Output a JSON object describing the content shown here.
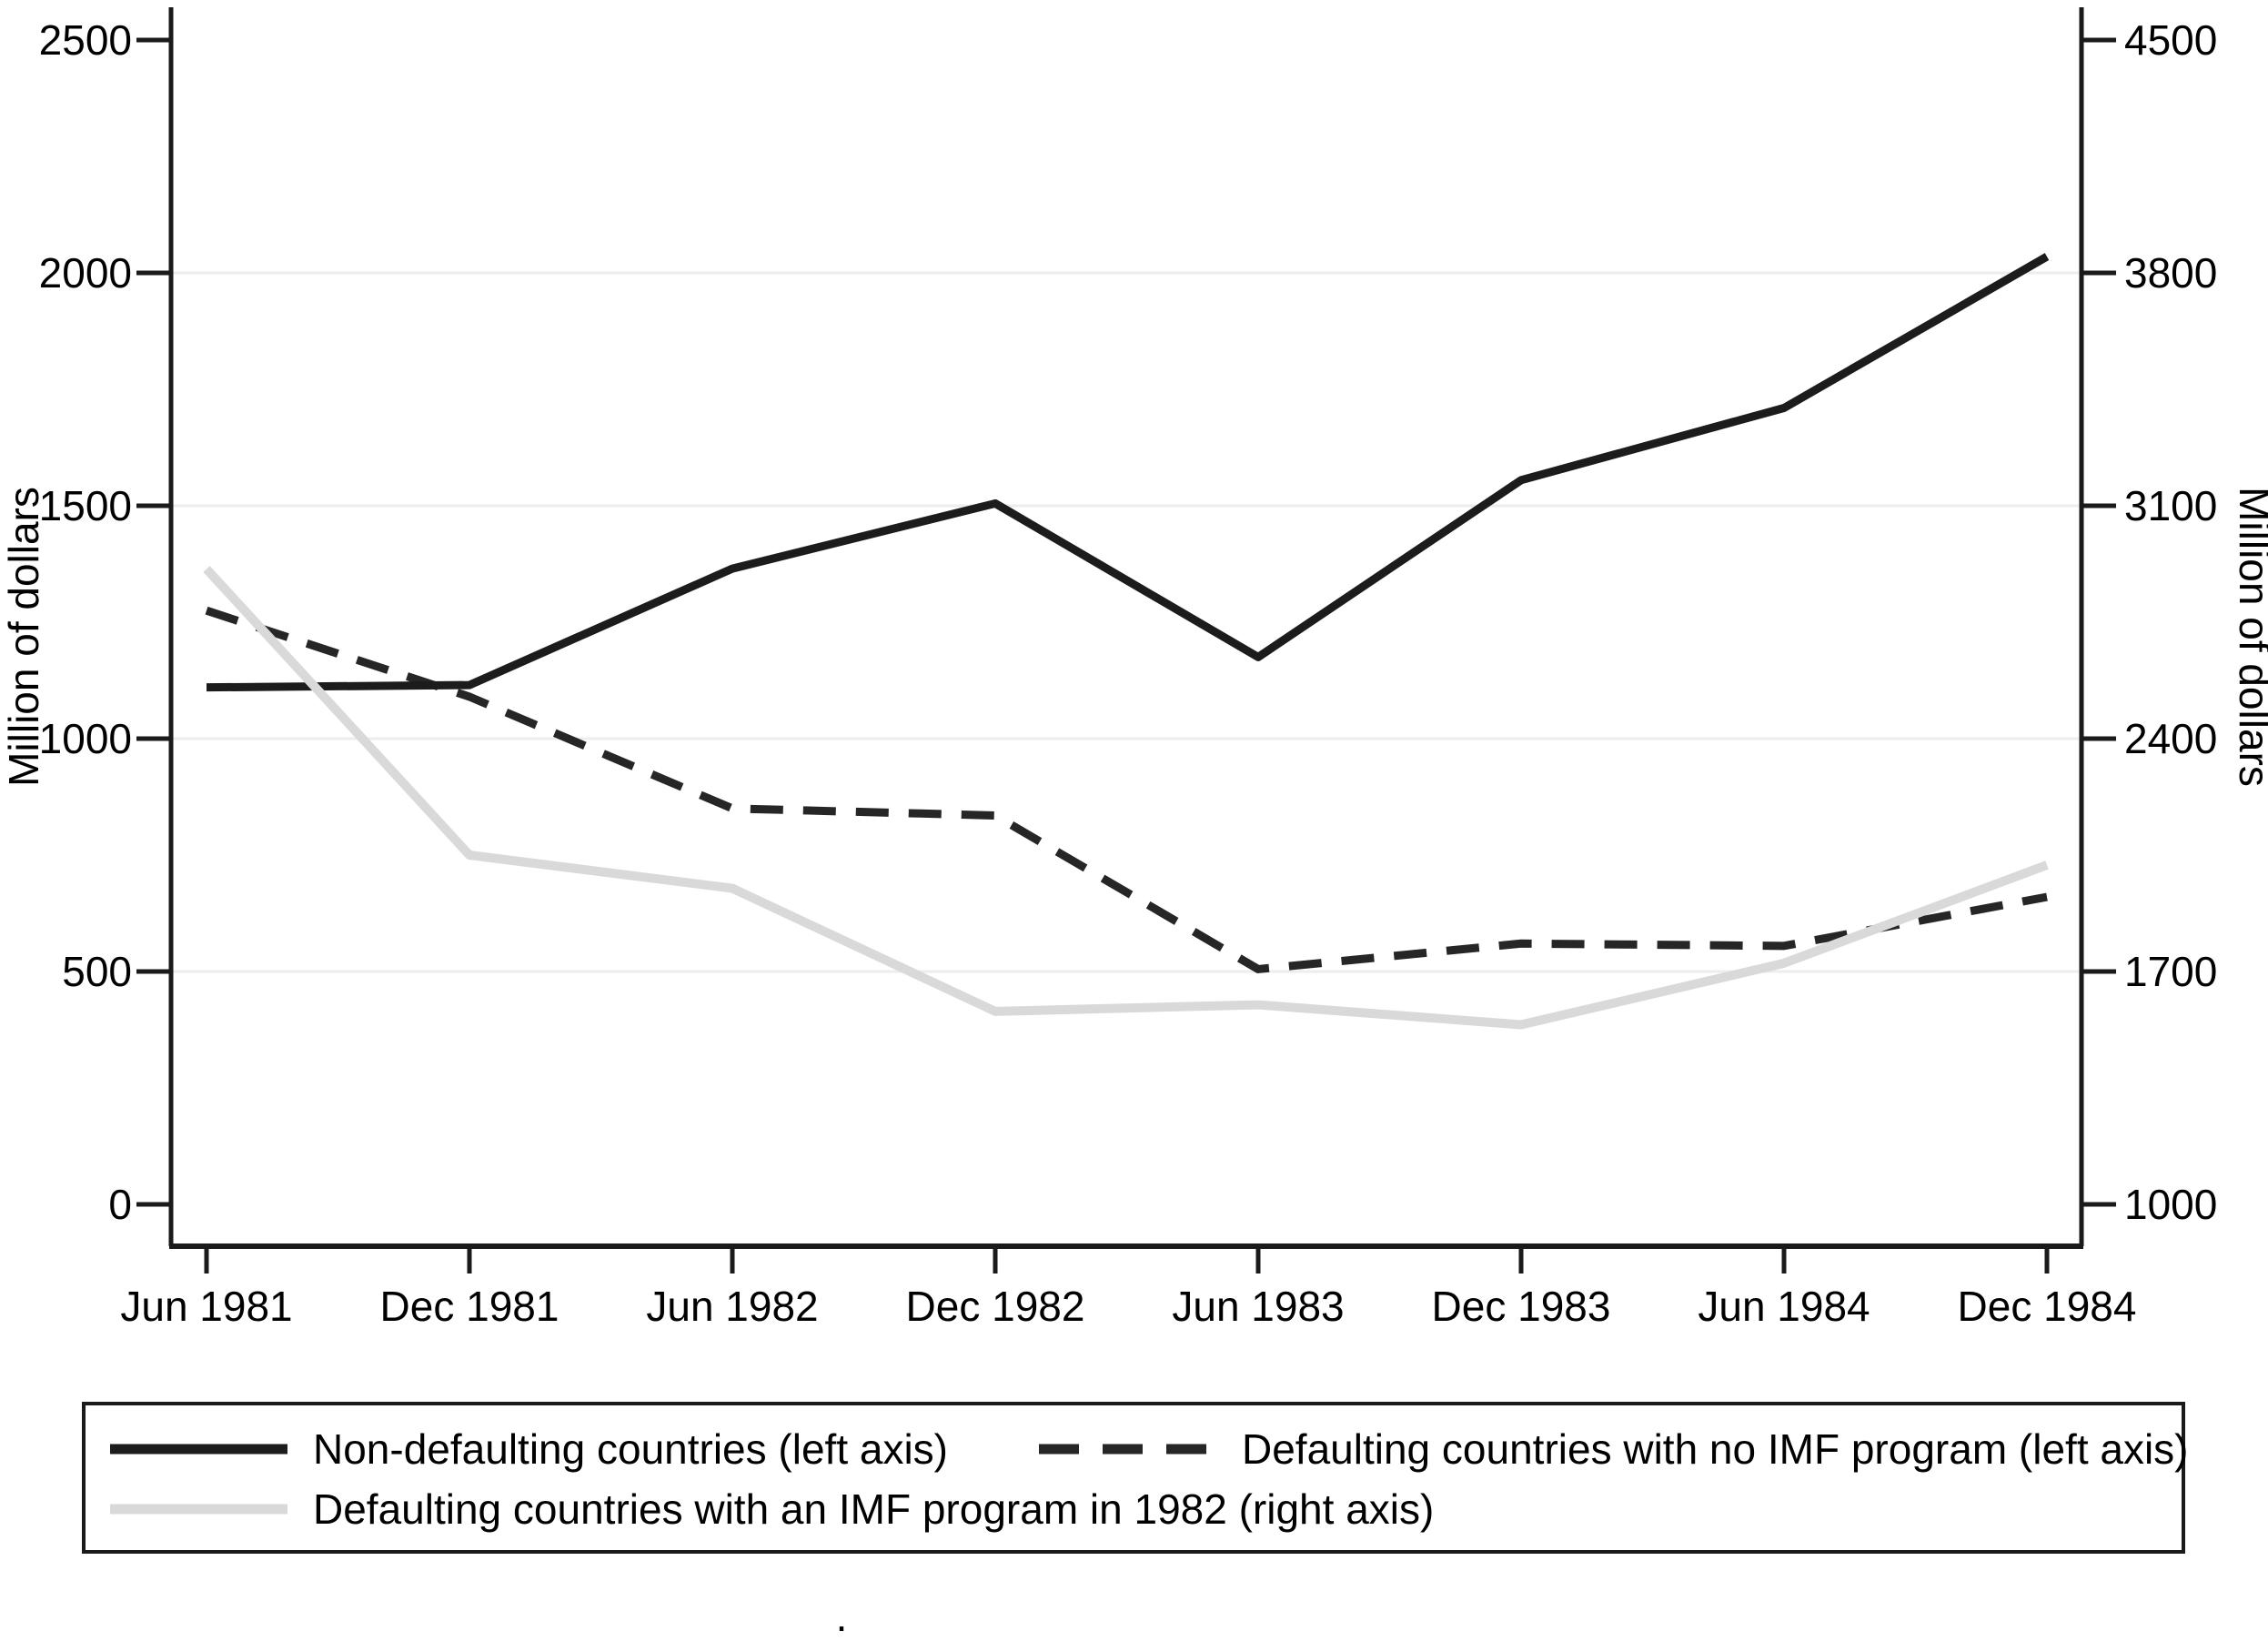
{
  "figure": {
    "left_axis_title": "Million of dollars",
    "right_axis_title": "Million of dollars",
    "footnote_dot": "."
  },
  "chart_data": {
    "type": "line",
    "categories": [
      "Jun 1981",
      "Dec 1981",
      "Jun 1982",
      "Dec 1982",
      "Jun 1983",
      "Dec 1983",
      "Jun 1984",
      "Dec 1984"
    ],
    "left_axis": {
      "title": "Million of dollars",
      "ticks": [
        0,
        500,
        1000,
        1500,
        2000,
        2500
      ],
      "range": [
        0,
        2500
      ]
    },
    "right_axis": {
      "title": "Million of dollars",
      "ticks": [
        1000,
        1700,
        2400,
        3100,
        3800,
        4500
      ],
      "range": [
        1000,
        4500
      ]
    },
    "gridlines_at_left_values": [
      500,
      1000,
      1500,
      2000
    ],
    "grid": true,
    "legend_position": "bottom",
    "series": [
      {
        "key": "non-defaulting",
        "name": "Non-defaulting countries (left axis)",
        "axis": "left",
        "style": "solid",
        "color": "#1c1c1c",
        "values": [
          1110,
          1115,
          1365,
          1505,
          1175,
          1555,
          1710,
          2035
        ]
      },
      {
        "key": "defaulting-no-imf",
        "name": "Defaulting countries with no IMF program (left axis)",
        "axis": "left",
        "style": "dashed",
        "color": "#262626",
        "values": [
          1275,
          1090,
          850,
          835,
          505,
          560,
          555,
          660
        ]
      },
      {
        "key": "defaulting-imf-1982",
        "name": "Defaulting countries with an IMF program in 1982 (right axis)",
        "axis": "right",
        "style": "solid",
        "color": "#d9d9d9",
        "values": [
          2910,
          2050,
          1950,
          1580,
          1600,
          1540,
          1725,
          2020
        ]
      }
    ]
  },
  "colors": {
    "axis": "#1a1a1a",
    "gridline": "#ededed",
    "text": "#000000",
    "legend_border": "#1a1a1a"
  }
}
